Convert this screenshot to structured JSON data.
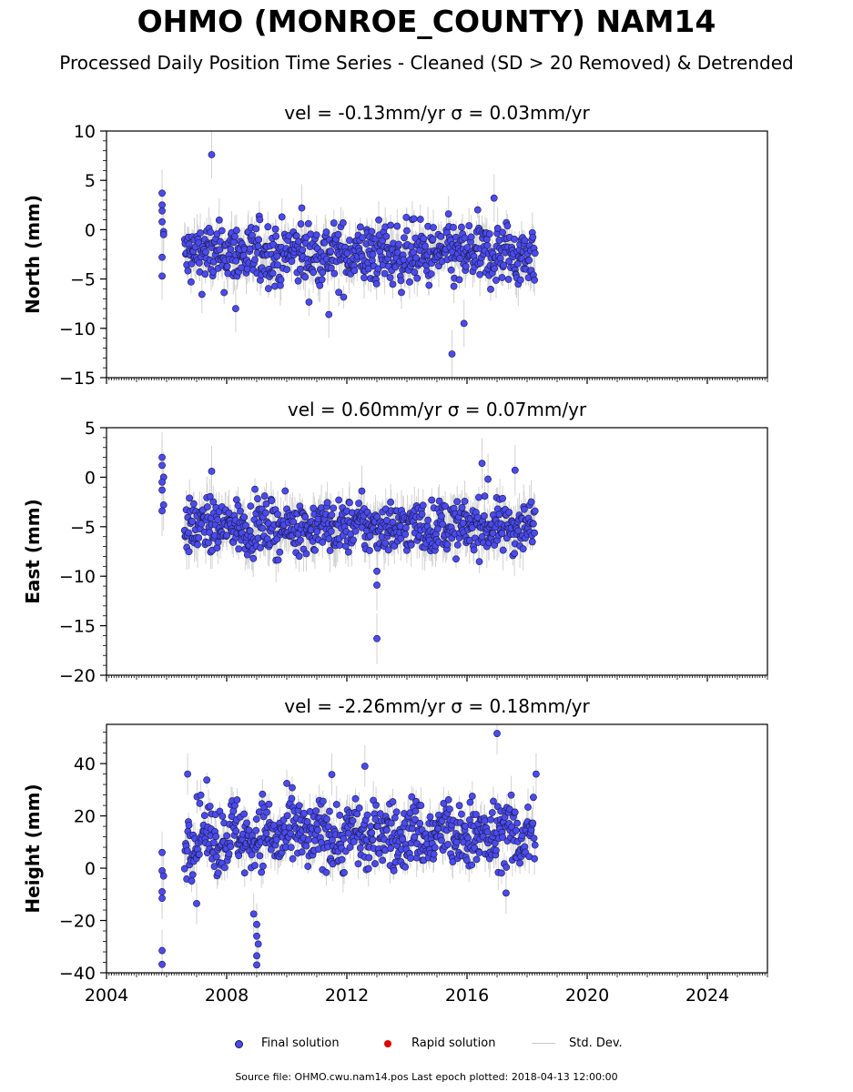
{
  "title": "OHMO (MONROE_COUNTY) NAM14",
  "subtitle": "Processed Daily Position Time Series - Cleaned (SD > 20 Removed) & Detrended",
  "colors": {
    "final": "#4a4af0",
    "rapid": "#e00000",
    "std": "#c8c8c8",
    "marker_edge": "#1a1a40"
  },
  "chart_data": [
    {
      "type": "scatter",
      "panel": "north",
      "title_vel": "vel = -0.13mm/yr",
      "title_sigma": "σ = 0.03mm/yr",
      "ylabel": "North (mm)",
      "ylim": [
        -15,
        10
      ],
      "yticks": [
        10,
        5,
        0,
        -5,
        -10,
        -15
      ],
      "ytick_labels": [
        "10",
        "5",
        "0",
        "−5",
        "−10",
        "−15"
      ],
      "series": {
        "center": -2.5,
        "spread": 1.6,
        "trend": 0.2,
        "err": 1.5
      },
      "outliers": [
        {
          "x": 2005.85,
          "y": 3.7
        },
        {
          "x": 2005.85,
          "y": 2.5
        },
        {
          "x": 2005.85,
          "y": 1.9
        },
        {
          "x": 2005.85,
          "y": 0.8
        },
        {
          "x": 2005.9,
          "y": -0.2
        },
        {
          "x": 2005.9,
          "y": -0.5
        },
        {
          "x": 2005.85,
          "y": -2.8
        },
        {
          "x": 2005.85,
          "y": -4.7
        },
        {
          "x": 2007.5,
          "y": 7.6
        },
        {
          "x": 2016.9,
          "y": 3.2
        },
        {
          "x": 2015.5,
          "y": -12.6
        },
        {
          "x": 2015.9,
          "y": -9.5
        },
        {
          "x": 2011.4,
          "y": -8.6
        },
        {
          "x": 2008.3,
          "y": -8.0
        },
        {
          "x": 2010.5,
          "y": 2.2
        }
      ]
    },
    {
      "type": "scatter",
      "panel": "east",
      "title_vel": "vel = 0.60mm/yr",
      "title_sigma": "σ = 0.07mm/yr",
      "ylabel": "East (mm)",
      "ylim": [
        -20,
        5
      ],
      "yticks": [
        5,
        0,
        -5,
        -10,
        -15,
        -20
      ],
      "ytick_labels": [
        "5",
        "0",
        "−5",
        "−10",
        "−15",
        "−20"
      ],
      "series": {
        "center": -5.0,
        "spread": 1.3,
        "trend": 0.15,
        "err": 1.6
      },
      "outliers": [
        {
          "x": 2005.85,
          "y": 2.0
        },
        {
          "x": 2005.85,
          "y": 1.2
        },
        {
          "x": 2005.9,
          "y": 0.0
        },
        {
          "x": 2005.85,
          "y": -0.5
        },
        {
          "x": 2005.85,
          "y": -1.3
        },
        {
          "x": 2005.9,
          "y": -2.8
        },
        {
          "x": 2005.85,
          "y": -3.4
        },
        {
          "x": 2007.5,
          "y": 0.6
        },
        {
          "x": 2016.5,
          "y": 1.4
        },
        {
          "x": 2016.7,
          "y": -0.2
        },
        {
          "x": 2017.6,
          "y": 0.7
        },
        {
          "x": 2013.0,
          "y": -16.3
        },
        {
          "x": 2013.0,
          "y": -10.9
        },
        {
          "x": 2013.0,
          "y": -9.5
        },
        {
          "x": 2012.5,
          "y": -1.4
        }
      ]
    },
    {
      "type": "scatter",
      "panel": "height",
      "title_vel": "vel = -2.26mm/yr",
      "title_sigma": "σ = 0.18mm/yr",
      "ylabel": "Height (mm)",
      "ylim": [
        -40,
        55
      ],
      "yticks": [
        40,
        20,
        0,
        -20,
        -40
      ],
      "ytick_labels": [
        "40",
        "20",
        "0",
        "−20",
        "−40"
      ],
      "series": {
        "center": 12.5,
        "spread": 6.5,
        "trend": 2.5,
        "err": 5
      },
      "outliers": [
        {
          "x": 2005.85,
          "y": 6.0
        },
        {
          "x": 2005.85,
          "y": -1.0
        },
        {
          "x": 2005.9,
          "y": -3.0
        },
        {
          "x": 2005.85,
          "y": -9.0
        },
        {
          "x": 2005.85,
          "y": -11.5
        },
        {
          "x": 2005.85,
          "y": -31.5
        },
        {
          "x": 2005.85,
          "y": -36.8
        },
        {
          "x": 2008.9,
          "y": -17.5
        },
        {
          "x": 2009.0,
          "y": -21.5
        },
        {
          "x": 2009.0,
          "y": -26.0
        },
        {
          "x": 2009.05,
          "y": -29.0
        },
        {
          "x": 2009.0,
          "y": -33.5
        },
        {
          "x": 2009.0,
          "y": -37.0
        },
        {
          "x": 2007.0,
          "y": -13.5
        },
        {
          "x": 2006.7,
          "y": 36.0
        },
        {
          "x": 2012.6,
          "y": 39.0
        },
        {
          "x": 2017.0,
          "y": 51.5
        },
        {
          "x": 2017.3,
          "y": -9.5
        },
        {
          "x": 2018.3,
          "y": 36.0
        },
        {
          "x": 2011.5,
          "y": 35.8
        }
      ]
    }
  ],
  "x_axis": {
    "xlim": [
      2004,
      2026
    ],
    "ticks": [
      2004,
      2008,
      2012,
      2016,
      2020,
      2024
    ],
    "tick_labels": [
      "2004",
      "2008",
      "2012",
      "2016",
      "2020",
      "2024"
    ],
    "data_start": 2006.6,
    "data_end": 2018.28
  },
  "legend": {
    "final": "Final solution",
    "rapid": "Rapid solution",
    "std": "Std. Dev."
  },
  "footer": "Source file: OHMO.cwu.nam14.pos  Last epoch plotted: 2018-04-13 12:00:00"
}
